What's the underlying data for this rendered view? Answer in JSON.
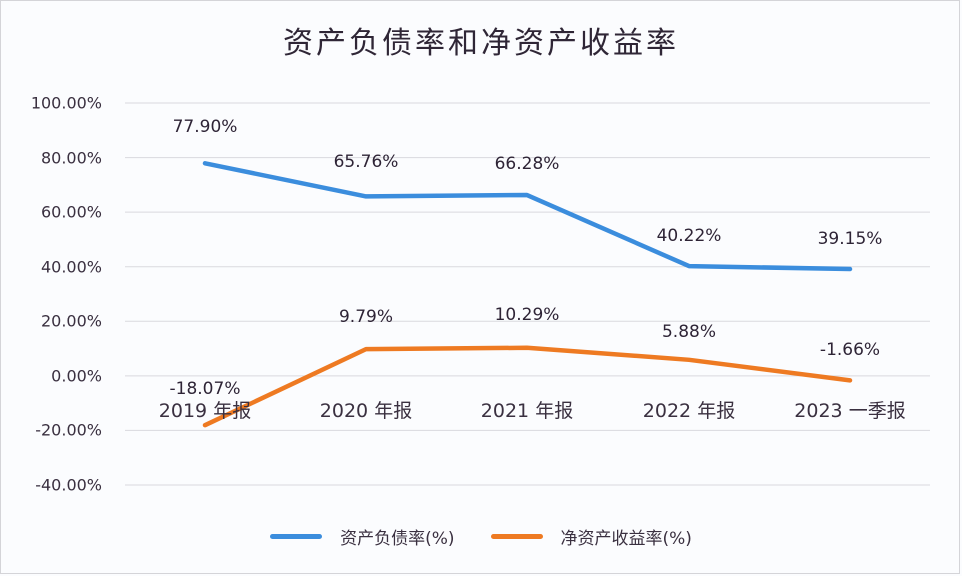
{
  "chart_data": {
    "type": "line",
    "title": "资产负债率和净资产收益率",
    "categories": [
      "2019 年报",
      "2020 年报",
      "2021 年报",
      "2022 年报",
      "2023 一季报"
    ],
    "series": [
      {
        "name": "资产负债率(%)",
        "color": "#3b8ddd",
        "values": [
          77.9,
          65.76,
          66.28,
          40.22,
          39.15
        ],
        "labels": [
          "77.90%",
          "65.76%",
          "66.28%",
          "40.22%",
          "39.15%"
        ]
      },
      {
        "name": "净资产收益率(%)",
        "color": "#ee7a22",
        "values": [
          -18.07,
          9.79,
          10.29,
          5.88,
          -1.66
        ],
        "labels": [
          "-18.07%",
          "9.79%",
          "10.29%",
          "5.88%",
          "-1.66%"
        ]
      }
    ],
    "xlabel": "",
    "ylabel": "",
    "ylim": [
      -40,
      100
    ],
    "yticks": [
      "100.00%",
      "80.00%",
      "60.00%",
      "40.00%",
      "20.00%",
      "0.00%",
      "-20.00%",
      "-40.00%"
    ],
    "grid": true,
    "legend_position": "bottom"
  }
}
